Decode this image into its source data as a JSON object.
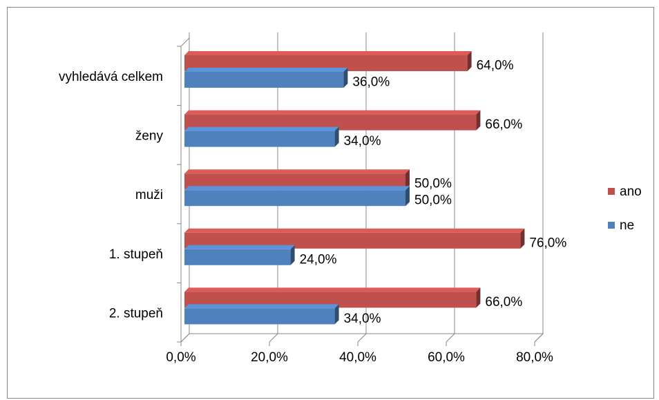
{
  "chart_data": {
    "type": "bar3d_horizontal",
    "categories": [
      "vyhledává celkem",
      "ženy",
      "muži",
      "1. stupeň",
      "2. stupeň"
    ],
    "series": [
      {
        "name": "ano",
        "color": "#c0504d",
        "values": [
          64,
          66,
          50,
          76,
          66
        ],
        "value_labels": [
          "64,0%",
          "66,0%",
          "50,0%",
          "76,0%",
          "66,0%"
        ]
      },
      {
        "name": "ne",
        "color": "#4f81bd",
        "values": [
          36,
          34,
          50,
          24,
          34
        ],
        "value_labels": [
          "36,0%",
          "34,0%",
          "50,0%",
          "24,0%",
          "34,0%"
        ]
      }
    ],
    "xlim": [
      0,
      80
    ],
    "xticks": [
      {
        "value": 0,
        "label": "0,0%"
      },
      {
        "value": 20,
        "label": "20,0%"
      },
      {
        "value": 40,
        "label": "40,0%"
      },
      {
        "value": 60,
        "label": "60,0%"
      },
      {
        "value": 80,
        "label": "80,0%"
      }
    ],
    "grid": true,
    "legend": "right"
  }
}
